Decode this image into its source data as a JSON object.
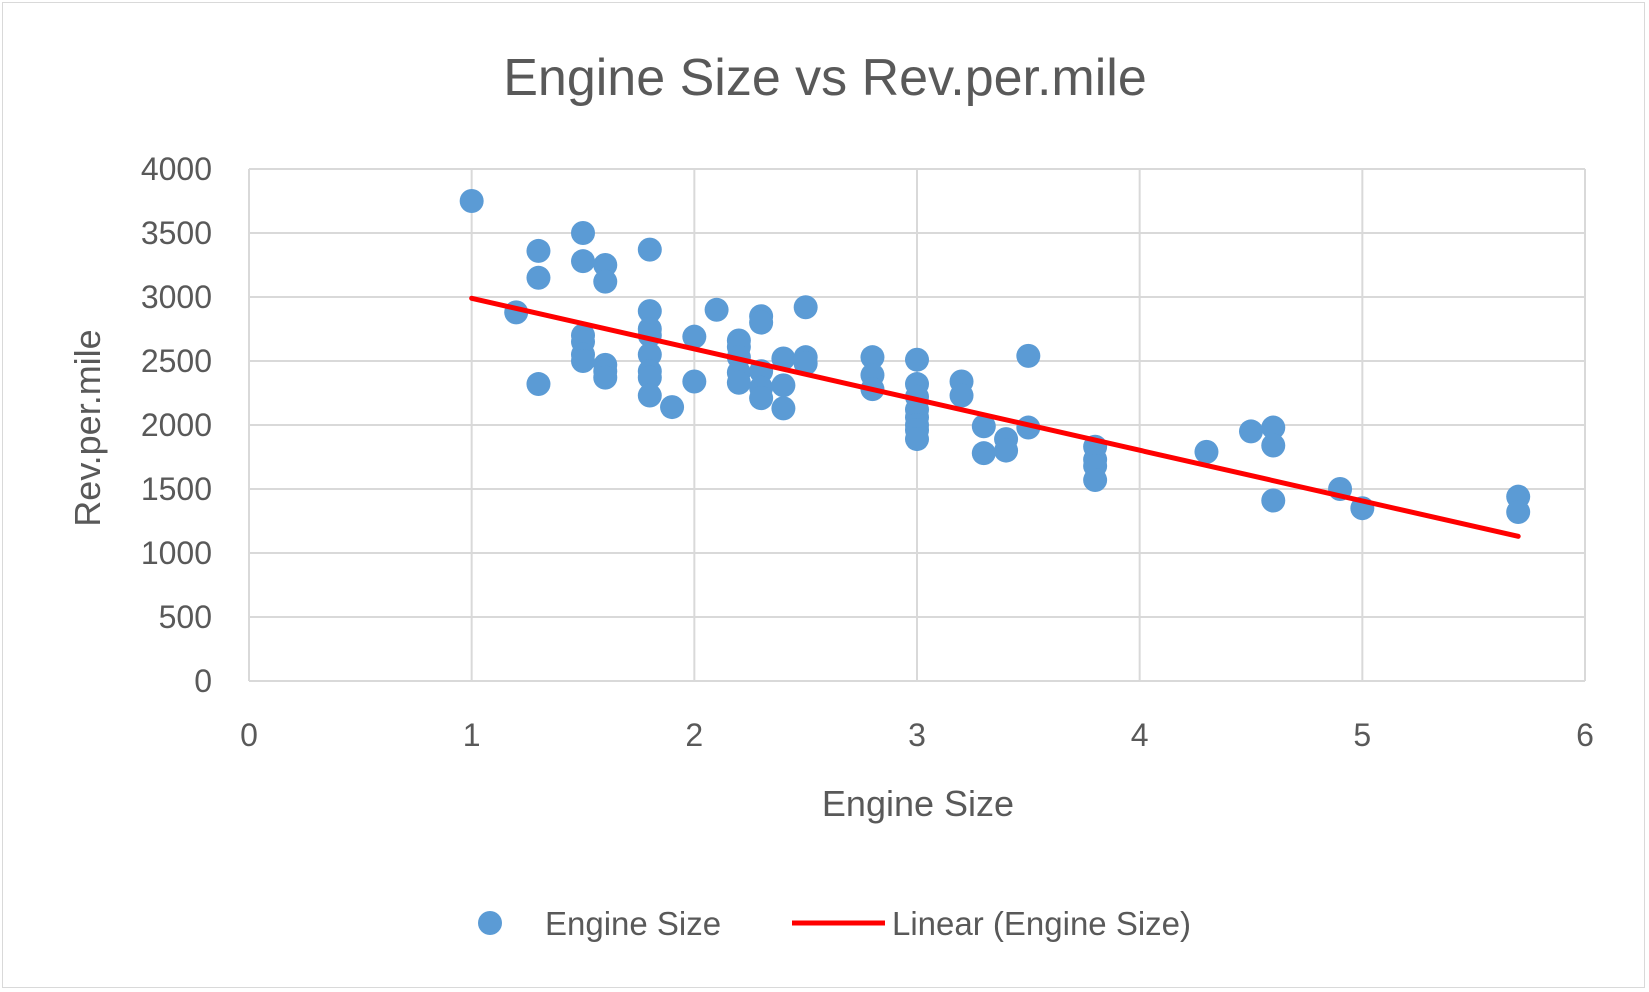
{
  "chart_data": {
    "type": "scatter",
    "title": "Engine Size vs Rev.per.mile",
    "xlabel": "Engine Size",
    "ylabel": "Rev.per.mile",
    "xlim": [
      0,
      6
    ],
    "ylim": [
      0,
      4000
    ],
    "x_ticks": [
      0,
      1,
      2,
      3,
      4,
      5,
      6
    ],
    "y_ticks": [
      0,
      500,
      1000,
      1500,
      2000,
      2500,
      3000,
      3500,
      4000
    ],
    "grid": true,
    "legend_position": "bottom",
    "series": [
      {
        "name": "Engine Size",
        "type": "scatter",
        "color": "#5b9bd5",
        "points": [
          [
            1.0,
            3750
          ],
          [
            1.2,
            2880
          ],
          [
            1.3,
            3360
          ],
          [
            1.3,
            3150
          ],
          [
            1.3,
            2320
          ],
          [
            1.5,
            3500
          ],
          [
            1.5,
            3280
          ],
          [
            1.5,
            2700
          ],
          [
            1.5,
            2650
          ],
          [
            1.5,
            2550
          ],
          [
            1.5,
            2500
          ],
          [
            1.6,
            3250
          ],
          [
            1.6,
            3120
          ],
          [
            1.6,
            2470
          ],
          [
            1.6,
            2420
          ],
          [
            1.6,
            2370
          ],
          [
            1.8,
            3370
          ],
          [
            1.8,
            2890
          ],
          [
            1.8,
            2750
          ],
          [
            1.8,
            2700
          ],
          [
            1.8,
            2550
          ],
          [
            1.8,
            2420
          ],
          [
            1.8,
            2370
          ],
          [
            1.8,
            2230
          ],
          [
            1.9,
            2140
          ],
          [
            2.0,
            2690
          ],
          [
            2.0,
            2340
          ],
          [
            2.1,
            2900
          ],
          [
            2.2,
            2660
          ],
          [
            2.2,
            2610
          ],
          [
            2.2,
            2530
          ],
          [
            2.2,
            2410
          ],
          [
            2.2,
            2330
          ],
          [
            2.3,
            2850
          ],
          [
            2.3,
            2800
          ],
          [
            2.3,
            2420
          ],
          [
            2.3,
            2290
          ],
          [
            2.3,
            2210
          ],
          [
            2.4,
            2520
          ],
          [
            2.4,
            2310
          ],
          [
            2.4,
            2130
          ],
          [
            2.5,
            2920
          ],
          [
            2.5,
            2530
          ],
          [
            2.5,
            2480
          ],
          [
            2.8,
            2530
          ],
          [
            2.8,
            2390
          ],
          [
            2.8,
            2280
          ],
          [
            3.0,
            2510
          ],
          [
            3.0,
            2320
          ],
          [
            3.0,
            2220
          ],
          [
            3.0,
            2120
          ],
          [
            3.0,
            2060
          ],
          [
            3.0,
            2000
          ],
          [
            3.0,
            1960
          ],
          [
            3.0,
            1890
          ],
          [
            3.2,
            2340
          ],
          [
            3.2,
            2230
          ],
          [
            3.3,
            1990
          ],
          [
            3.3,
            1780
          ],
          [
            3.4,
            1890
          ],
          [
            3.4,
            1800
          ],
          [
            3.5,
            2540
          ],
          [
            3.5,
            1980
          ],
          [
            3.8,
            1830
          ],
          [
            3.8,
            1730
          ],
          [
            3.8,
            1680
          ],
          [
            3.8,
            1570
          ],
          [
            4.3,
            1790
          ],
          [
            4.5,
            1950
          ],
          [
            4.6,
            1980
          ],
          [
            4.6,
            1840
          ],
          [
            4.6,
            1410
          ],
          [
            4.9,
            1500
          ],
          [
            5.0,
            1350
          ],
          [
            5.7,
            1440
          ],
          [
            5.7,
            1320
          ]
        ]
      },
      {
        "name": "Linear (Engine Size)",
        "type": "trendline",
        "color": "#ff0000",
        "x": [
          1.0,
          5.7
        ],
        "y": [
          2990,
          1130
        ]
      }
    ]
  }
}
